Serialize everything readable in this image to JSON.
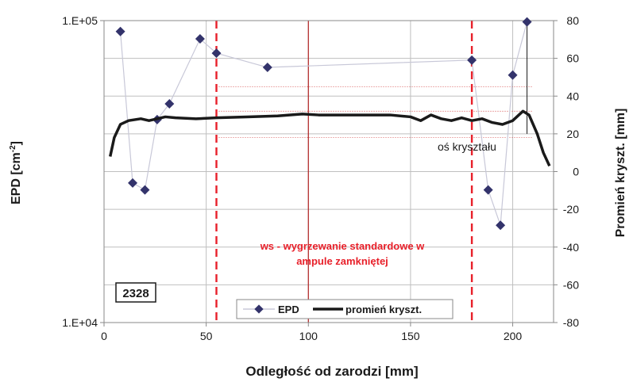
{
  "chart_data": {
    "type": "line",
    "xlabel": "Odległość od zarodzi [mm]",
    "ylabel_left_main": "EPD [cm",
    "ylabel_left_sup": "-2",
    "ylabel_left_end": "]",
    "ylabel_right": "Promień kryszt. [mm]",
    "x_range": [
      0,
      220
    ],
    "x_ticks": [
      0,
      50,
      100,
      150,
      200
    ],
    "y_left_log": true,
    "y_left_range": [
      10000,
      100000
    ],
    "y_left_ticks": [
      "1.E+04",
      "1.E+05"
    ],
    "y_right_range": [
      -80,
      80
    ],
    "y_right_ticks": [
      -80,
      -60,
      -40,
      -20,
      0,
      20,
      40,
      60,
      80
    ],
    "legend_position": "bottom-center",
    "series": [
      {
        "name": "EPD",
        "kind": "scatter-line",
        "color": "#33336b",
        "line_color": "#c8c8d8",
        "axis": "left",
        "points": [
          [
            8,
            92000
          ],
          [
            14,
            29000
          ],
          [
            20,
            27500
          ],
          [
            26,
            47000
          ],
          [
            32,
            53000
          ],
          [
            47,
            87000
          ],
          [
            55,
            78000
          ],
          [
            80,
            70000
          ],
          [
            180,
            74000
          ],
          [
            188,
            27500
          ],
          [
            194,
            21000
          ],
          [
            200,
            66000
          ],
          [
            207,
            99000
          ]
        ]
      },
      {
        "name": "promień kryszt.",
        "kind": "line",
        "color": "#1a1a1a",
        "axis": "right",
        "points": [
          [
            3,
            8
          ],
          [
            5,
            18
          ],
          [
            8,
            25
          ],
          [
            12,
            27
          ],
          [
            18,
            28
          ],
          [
            22,
            27
          ],
          [
            26,
            28
          ],
          [
            30,
            29
          ],
          [
            35,
            28.5
          ],
          [
            45,
            28
          ],
          [
            55,
            28.5
          ],
          [
            70,
            29
          ],
          [
            85,
            29.5
          ],
          [
            97,
            30.5
          ],
          [
            105,
            30
          ],
          [
            115,
            30
          ],
          [
            125,
            30
          ],
          [
            140,
            30
          ],
          [
            150,
            29
          ],
          [
            155,
            27
          ],
          [
            160,
            30
          ],
          [
            165,
            28
          ],
          [
            170,
            27
          ],
          [
            175,
            28.5
          ],
          [
            180,
            27
          ],
          [
            185,
            28
          ],
          [
            190,
            26
          ],
          [
            195,
            25
          ],
          [
            200,
            27
          ],
          [
            205,
            32
          ],
          [
            208,
            30
          ],
          [
            212,
            20
          ],
          [
            215,
            10
          ],
          [
            218,
            3
          ]
        ]
      }
    ],
    "annotations": {
      "box_label": "2328",
      "axis_note": "oś kryształu",
      "ws_line1": "ws - wygrzewanie standardowe w",
      "ws_line2": "ampule zamkniętej"
    },
    "dashed_verticals_x": [
      55,
      180
    ],
    "axis_vertical_x": 207,
    "center_vertical_x": 100,
    "colors": {
      "dashed": "#e8202a",
      "center_line": "#b22222",
      "ws_text": "#e8202a",
      "dotted_ref": "#cc3333",
      "grid": "#bfbfbf",
      "frame": "#8a8a8a"
    }
  }
}
